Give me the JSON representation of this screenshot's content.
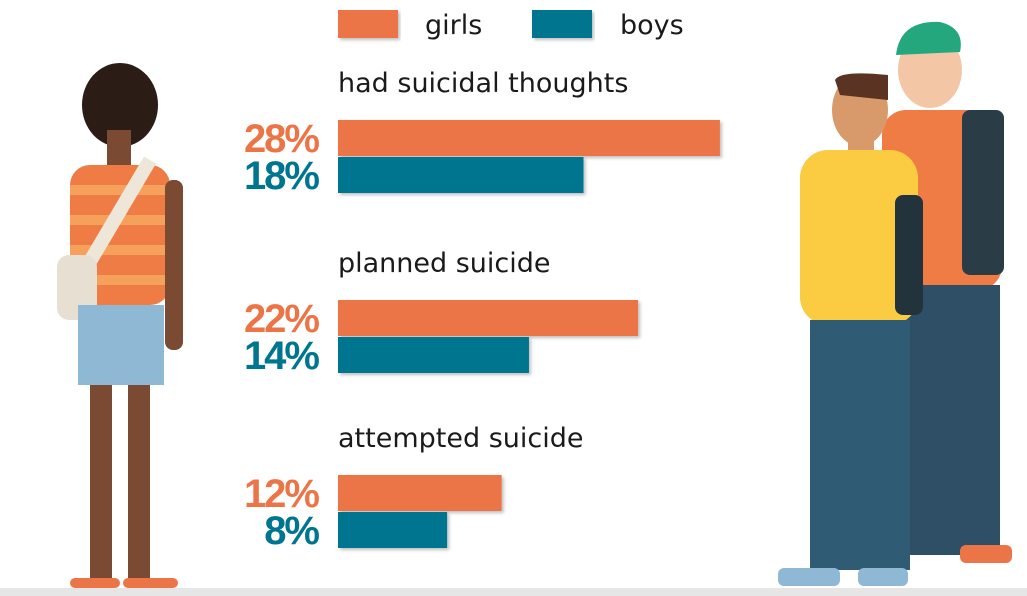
{
  "chart_data": {
    "type": "bar",
    "categories": [
      "had suicidal thoughts",
      "planned suicide",
      "attempted suicide"
    ],
    "series": [
      {
        "name": "girls",
        "color": "#ec7547",
        "values": [
          28,
          22,
          12
        ],
        "value_labels": [
          "28%",
          "22%",
          "12%"
        ]
      },
      {
        "name": "boys",
        "color": "#00758f",
        "values": [
          18,
          14,
          8
        ],
        "value_labels": [
          "18%",
          "14%",
          "8%"
        ]
      }
    ]
  }
}
